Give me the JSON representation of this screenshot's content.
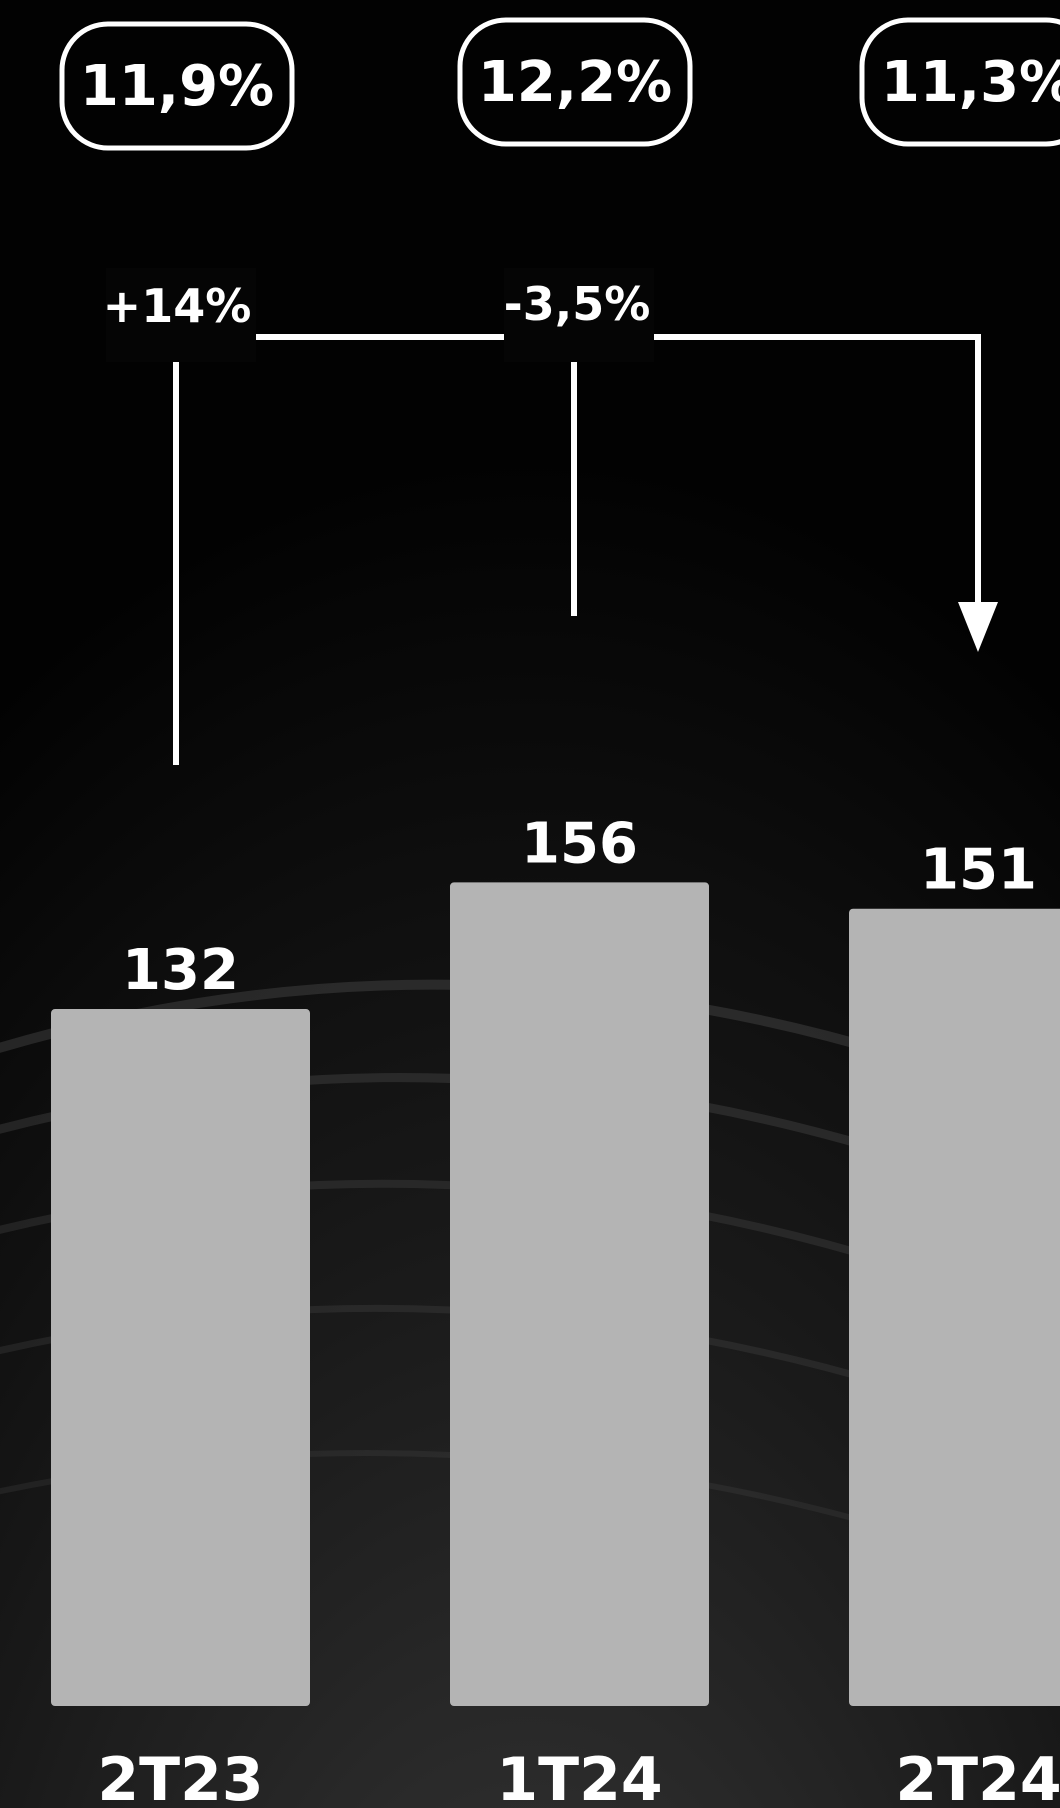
{
  "chart_data": {
    "type": "bar",
    "categories": [
      "2T23",
      "1T24",
      "2T24"
    ],
    "values": [
      132,
      156,
      151
    ],
    "data_labels": [
      "132",
      "156",
      "151"
    ],
    "margin_badges": [
      "11,9%",
      "12,2%",
      "11,3%"
    ],
    "variation_labels": [
      "+14%",
      "-3,5%"
    ],
    "title": "",
    "xlabel": "",
    "ylabel": "",
    "grid": false,
    "legend": "none",
    "colors": {
      "bar": "#b4b4b4",
      "background": "#020202",
      "text": "#ffffff"
    }
  }
}
